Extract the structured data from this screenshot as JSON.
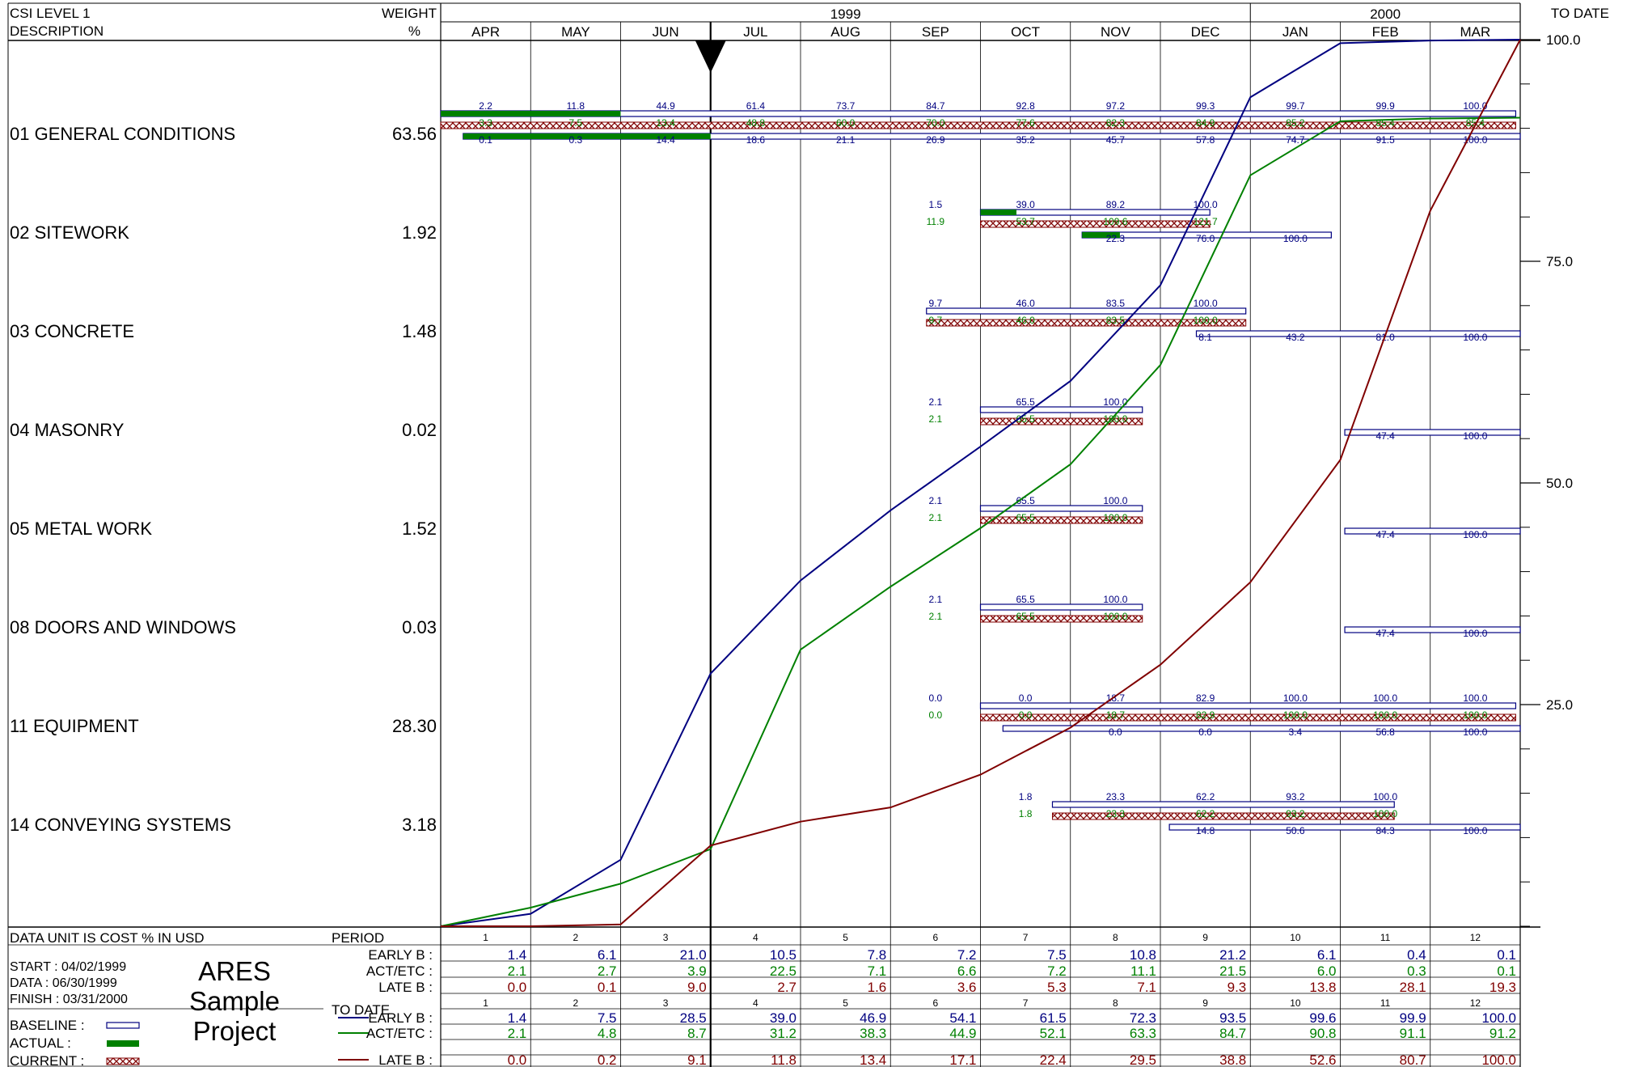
{
  "chart_data": {
    "type": "gantt-s-curve",
    "header": {
      "col1_line1": "CSI LEVEL 1",
      "col1_line2": "DESCRIPTION",
      "col2_line1": "WEIGHT",
      "col2_line2": "%",
      "year1": "1999",
      "year2": "2000",
      "months": [
        "APR",
        "MAY",
        "JUN",
        "JUL",
        "AUG",
        "SEP",
        "OCT",
        "NOV",
        "DEC",
        "JAN",
        "FEB",
        "MAR"
      ],
      "to_date": "TO DATE"
    },
    "right_axis": {
      "ticks": [
        {
          "value": 100,
          "label": "100.0"
        },
        {
          "value": 75,
          "label": "75.0"
        },
        {
          "value": 50,
          "label": "50.0"
        },
        {
          "value": 25,
          "label": "25.0"
        }
      ],
      "ylim": [
        0,
        100
      ],
      "minor_step": 5
    },
    "data_date_month": 3,
    "colors": {
      "early": "#000080",
      "actual": "#008000",
      "late": "#800000",
      "actual_bar": "#008000",
      "grid": "#000000"
    },
    "activities": [
      {
        "name": "01 GENERAL CONDITIONS",
        "weight": "63.56",
        "bars": [
          {
            "kind": "baseline",
            "start": 0,
            "end": 11.95
          },
          {
            "kind": "actual",
            "start": 0,
            "end": 2
          },
          {
            "kind": "current",
            "start": 0,
            "end": 11.95
          },
          {
            "kind": "baseline",
            "start": 0.25,
            "end": 12
          },
          {
            "kind": "actual",
            "start": 0.25,
            "end": 3
          }
        ],
        "labels": [
          {
            "line": 0,
            "color": "early",
            "values": [
              "2.2",
              "11.8",
              "44.9",
              "61.4",
              "73.7",
              "84.7",
              "92.8",
              "97.2",
              "99.3",
              "99.7",
              "99.9",
              "100.0"
            ],
            "months": [
              0,
              1,
              2,
              3,
              4,
              5,
              6,
              7,
              8,
              9,
              10,
              11
            ]
          },
          {
            "line": 1,
            "color": "actual",
            "values": [
              "3.3",
              "7.5",
              "13.4",
              "48.8",
              "60.0",
              "70.0",
              "77.6",
              "82.3",
              "84.9",
              "85.2",
              "85.4",
              "85.4"
            ],
            "months": [
              0,
              1,
              2,
              3,
              4,
              5,
              6,
              7,
              8,
              9,
              10,
              11
            ]
          },
          {
            "line": 2,
            "color": "early",
            "values": [
              "0.1",
              "0.3",
              "14.4",
              "18.6",
              "21.1",
              "26.9",
              "35.2",
              "45.7",
              "57.8",
              "74.7",
              "91.5",
              "100.0"
            ],
            "months": [
              0,
              1,
              2,
              3,
              4,
              5,
              6,
              7,
              8,
              9,
              10,
              11
            ]
          }
        ]
      },
      {
        "name": "02 SITEWORK",
        "weight": "1.92",
        "bars": [
          {
            "kind": "baseline",
            "start": 6,
            "end": 8.55
          },
          {
            "kind": "actual",
            "start": 6,
            "end": 6.4
          },
          {
            "kind": "current",
            "start": 6,
            "end": 8.55
          },
          {
            "kind": "baseline",
            "start": 7.13,
            "end": 9.9
          },
          {
            "kind": "actual",
            "start": 7.13,
            "end": 7.55
          }
        ],
        "labels": [
          {
            "line": 0,
            "color": "early",
            "values": [
              "1.5",
              "39.0",
              "89.2",
              "100.0"
            ],
            "months": [
              5,
              6,
              7,
              8
            ]
          },
          {
            "line": 1,
            "color": "actual",
            "values": [
              "11.9",
              "53.7",
              "109.6",
              "121.7"
            ],
            "months": [
              5,
              6,
              7,
              8
            ]
          },
          {
            "line": 2,
            "color": "early",
            "values": [
              "22.3",
              "76.0",
              "100.0"
            ],
            "months": [
              7,
              8,
              9
            ]
          }
        ]
      },
      {
        "name": "03 CONCRETE",
        "weight": "1.48",
        "bars": [
          {
            "kind": "baseline",
            "start": 5.4,
            "end": 8.95
          },
          {
            "kind": "current",
            "start": 5.4,
            "end": 8.95
          },
          {
            "kind": "baseline",
            "start": 8.4,
            "end": 12
          }
        ],
        "labels": [
          {
            "line": 0,
            "color": "early",
            "values": [
              "9.7",
              "46.0",
              "83.5",
              "100.0"
            ],
            "months": [
              5,
              6,
              7,
              8
            ]
          },
          {
            "line": 1,
            "color": "actual",
            "values": [
              "9.7",
              "46.0",
              "83.5",
              "100.0"
            ],
            "months": [
              5,
              6,
              7,
              8
            ]
          },
          {
            "line": 2,
            "color": "early",
            "values": [
              "8.1",
              "43.2",
              "81.0",
              "100.0"
            ],
            "months": [
              8,
              9,
              10,
              11
            ]
          }
        ]
      },
      {
        "name": "04 MASONRY",
        "weight": "0.02",
        "bars": [
          {
            "kind": "baseline",
            "start": 6,
            "end": 7.8
          },
          {
            "kind": "current",
            "start": 6,
            "end": 7.8
          },
          {
            "kind": "baseline",
            "start": 10.05,
            "end": 12
          }
        ],
        "labels": [
          {
            "line": 0,
            "color": "early",
            "values": [
              "2.1",
              "65.5",
              "100.0"
            ],
            "months": [
              5,
              6,
              7
            ]
          },
          {
            "line": 1,
            "color": "actual",
            "values": [
              "2.1",
              "65.5",
              "100.0"
            ],
            "months": [
              5,
              6,
              7
            ]
          },
          {
            "line": 2,
            "color": "early",
            "values": [
              "47.4",
              "100.0"
            ],
            "months": [
              10,
              11
            ]
          }
        ]
      },
      {
        "name": "05 METAL WORK",
        "weight": "1.52",
        "bars": [
          {
            "kind": "baseline",
            "start": 6,
            "end": 7.8
          },
          {
            "kind": "current",
            "start": 6,
            "end": 7.8
          },
          {
            "kind": "baseline",
            "start": 10.05,
            "end": 12
          }
        ],
        "labels": [
          {
            "line": 0,
            "color": "early",
            "values": [
              "2.1",
              "65.5",
              "100.0"
            ],
            "months": [
              5,
              6,
              7
            ]
          },
          {
            "line": 1,
            "color": "actual",
            "values": [
              "2.1",
              "65.5",
              "100.0"
            ],
            "months": [
              5,
              6,
              7
            ]
          },
          {
            "line": 2,
            "color": "early",
            "values": [
              "47.4",
              "100.0"
            ],
            "months": [
              10,
              11
            ]
          }
        ]
      },
      {
        "name": "08 DOORS AND WINDOWS",
        "weight": "0.03",
        "bars": [
          {
            "kind": "baseline",
            "start": 6,
            "end": 7.8
          },
          {
            "kind": "current",
            "start": 6,
            "end": 7.8
          },
          {
            "kind": "baseline",
            "start": 10.05,
            "end": 12
          }
        ],
        "labels": [
          {
            "line": 0,
            "color": "early",
            "values": [
              "2.1",
              "65.5",
              "100.0"
            ],
            "months": [
              5,
              6,
              7
            ]
          },
          {
            "line": 1,
            "color": "actual",
            "values": [
              "2.1",
              "65.5",
              "100.0"
            ],
            "months": [
              5,
              6,
              7
            ]
          },
          {
            "line": 2,
            "color": "early",
            "values": [
              "47.4",
              "100.0"
            ],
            "months": [
              10,
              11
            ]
          }
        ]
      },
      {
        "name": "11 EQUIPMENT",
        "weight": "28.30",
        "bars": [
          {
            "kind": "baseline",
            "start": 6,
            "end": 11.95
          },
          {
            "kind": "current",
            "start": 6,
            "end": 11.95
          },
          {
            "kind": "baseline",
            "start": 6.25,
            "end": 12
          }
        ],
        "labels": [
          {
            "line": 0,
            "color": "early",
            "values": [
              "0.0",
              "0.0",
              "18.7",
              "82.9",
              "100.0",
              "100.0",
              "100.0"
            ],
            "months": [
              5,
              6,
              7,
              8,
              9,
              10,
              11
            ]
          },
          {
            "line": 1,
            "color": "actual",
            "values": [
              "0.0",
              "0.0",
              "18.7",
              "82.9",
              "100.0",
              "100.0",
              "100.0"
            ],
            "months": [
              5,
              6,
              7,
              8,
              9,
              10,
              11
            ]
          },
          {
            "line": 2,
            "color": "early",
            "values": [
              "0.0",
              "0.0",
              "3.4",
              "56.8",
              "100.0"
            ],
            "months": [
              7,
              8,
              9,
              10,
              11
            ]
          }
        ]
      },
      {
        "name": "14 CONVEYING SYSTEMS",
        "weight": "3.18",
        "bars": [
          {
            "kind": "baseline",
            "start": 6.8,
            "end": 10.6
          },
          {
            "kind": "current",
            "start": 6.8,
            "end": 10.6
          },
          {
            "kind": "baseline",
            "start": 8.1,
            "end": 12
          }
        ],
        "labels": [
          {
            "line": 0,
            "color": "early",
            "values": [
              "1.8",
              "23.3",
              "62.2",
              "93.2",
              "100.0"
            ],
            "months": [
              6,
              7,
              8,
              9,
              10
            ]
          },
          {
            "line": 1,
            "color": "actual",
            "values": [
              "1.8",
              "23.3",
              "62.2",
              "93.2",
              "100.0"
            ],
            "months": [
              6,
              7,
              8,
              9,
              10
            ]
          },
          {
            "line": 2,
            "color": "early",
            "values": [
              "14.8",
              "50.6",
              "84.3",
              "100.0"
            ],
            "months": [
              8,
              9,
              10,
              11
            ]
          }
        ]
      }
    ],
    "series": [
      {
        "key": "early",
        "values": [
          0,
          1.4,
          7.5,
          28.5,
          39.0,
          46.9,
          54.1,
          61.5,
          72.3,
          93.5,
          99.6,
          99.9,
          100.0
        ]
      },
      {
        "key": "actual",
        "values": [
          0,
          2.1,
          4.8,
          8.7,
          31.2,
          38.3,
          44.9,
          52.1,
          63.3,
          84.7,
          90.8,
          91.1,
          91.2
        ]
      },
      {
        "key": "late",
        "values": [
          0,
          0.0,
          0.2,
          9.1,
          11.8,
          13.4,
          17.1,
          22.4,
          29.5,
          38.8,
          52.6,
          80.7,
          100.0
        ]
      }
    ],
    "footer": {
      "data_unit": "DATA UNIT IS COST % IN USD",
      "period_label": "PERIOD",
      "todate_label": "TO DATE",
      "periods": [
        "1",
        "2",
        "3",
        "4",
        "5",
        "6",
        "7",
        "8",
        "9",
        "10",
        "11",
        "12"
      ],
      "start": "START : 04/02/1999",
      "data": "DATA  : 06/30/1999",
      "finish": "FINISH : 03/31/2000",
      "project_lines": [
        "ARES",
        "Sample",
        "Project"
      ],
      "legend": [
        {
          "label": "BASELINE  :",
          "kind": "baseline"
        },
        {
          "label": "ACTUAL     :",
          "kind": "actual"
        },
        {
          "label": "CURRENT   :",
          "kind": "current"
        }
      ],
      "period_rows": [
        {
          "label": "EARLY B :",
          "color": "early",
          "values": [
            "1.4",
            "6.1",
            "21.0",
            "10.5",
            "7.8",
            "7.2",
            "7.5",
            "10.8",
            "21.2",
            "6.1",
            "0.4",
            "0.1"
          ]
        },
        {
          "label": "ACT/ETC :",
          "color": "actual",
          "values": [
            "2.1",
            "2.7",
            "3.9",
            "22.5",
            "7.1",
            "6.6",
            "7.2",
            "11.1",
            "21.5",
            "6.0",
            "0.3",
            "0.1"
          ]
        },
        {
          "label": "LATE B   :",
          "color": "late",
          "values": [
            "0.0",
            "0.1",
            "9.0",
            "2.7",
            "1.6",
            "3.6",
            "5.3",
            "7.1",
            "9.3",
            "13.8",
            "28.1",
            "19.3"
          ]
        }
      ],
      "todate_rows": [
        {
          "label": "EARLY B :",
          "color": "early",
          "values": [
            "1.4",
            "7.5",
            "28.5",
            "39.0",
            "46.9",
            "54.1",
            "61.5",
            "72.3",
            "93.5",
            "99.6",
            "99.9",
            "100.0"
          ]
        },
        {
          "label": "ACT/ETC :",
          "color": "actual",
          "values": [
            "2.1",
            "4.8",
            "8.7",
            "31.2",
            "38.3",
            "44.9",
            "52.1",
            "63.3",
            "84.7",
            "90.8",
            "91.1",
            "91.2"
          ]
        },
        {
          "label": "LATE B   :",
          "color": "late",
          "values": [
            "0.0",
            "0.2",
            "9.1",
            "11.8",
            "13.4",
            "17.1",
            "22.4",
            "29.5",
            "38.8",
            "52.6",
            "80.7",
            "100.0"
          ]
        }
      ]
    }
  }
}
